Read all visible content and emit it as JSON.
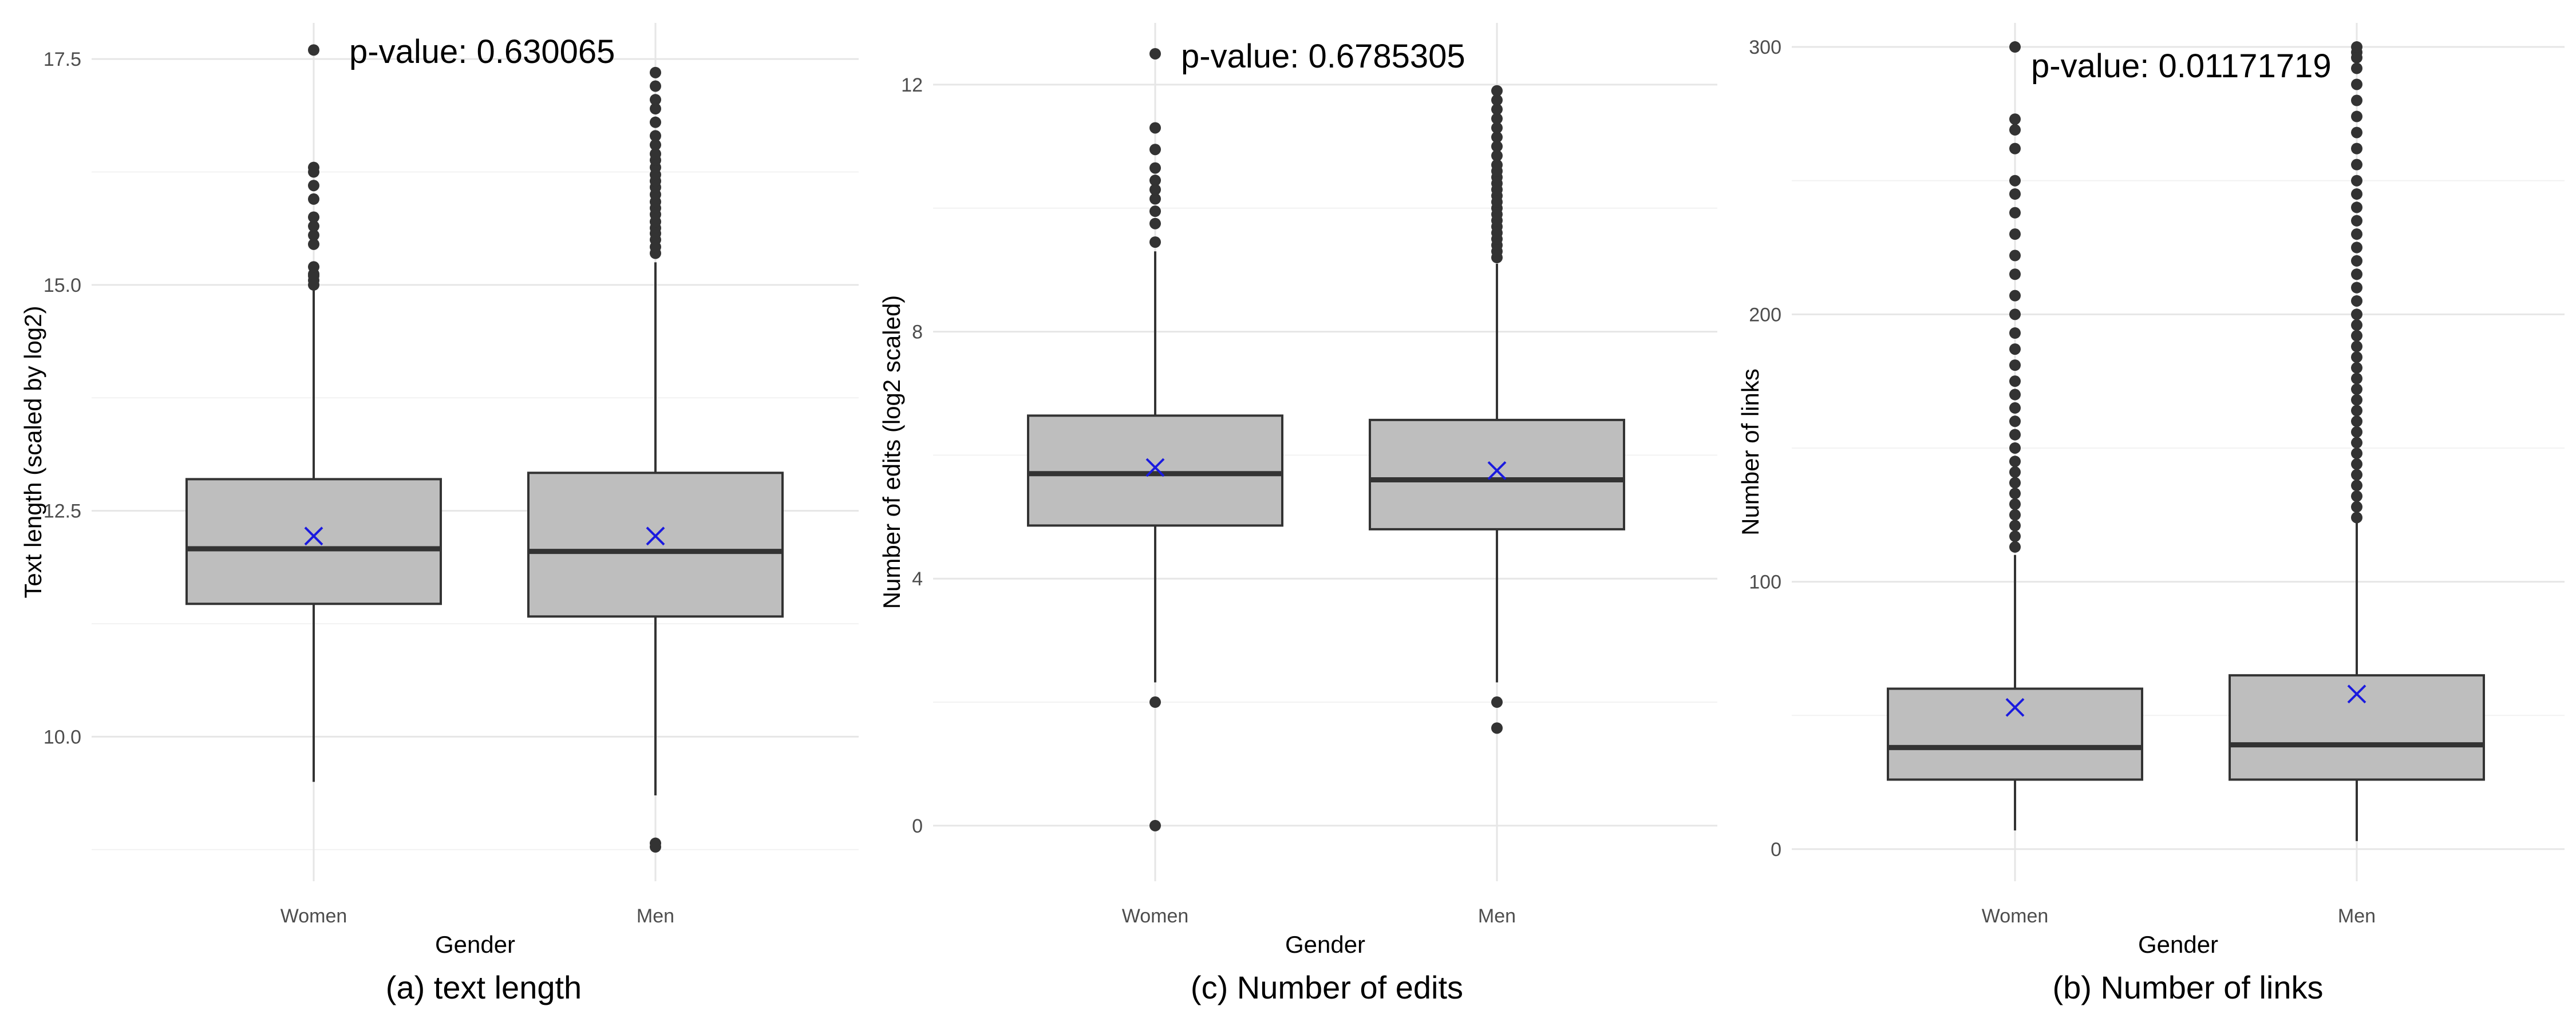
{
  "chart_data": [
    {
      "type": "box",
      "caption": "(a) text length",
      "annotation": "p-value: 0.630065",
      "xlabel": "Gender",
      "ylabel": "Text length (scaled by log2)",
      "ylim": [
        8.4,
        17.9
      ],
      "yticks": [
        10.0,
        12.5,
        15.0,
        17.5
      ],
      "ytick_labels": [
        "10.0",
        "12.5",
        "15.0",
        "17.5"
      ],
      "grid": true,
      "categories": [
        "Women",
        "Men"
      ],
      "boxes": [
        {
          "category": "Women",
          "whisker_low": 9.5,
          "q1": 11.47,
          "median": 12.08,
          "q3": 12.85,
          "whisker_high": 15.0,
          "mean": 12.22,
          "outliers": [
            15.0,
            15.05,
            15.1,
            15.12,
            15.2,
            15.45,
            15.55,
            15.65,
            15.75,
            15.95,
            16.1,
            16.25,
            16.3,
            17.6
          ]
        },
        {
          "category": "Men",
          "whisker_low": 9.35,
          "q1": 11.33,
          "median": 12.05,
          "q3": 12.92,
          "whisker_high": 15.25,
          "mean": 12.22,
          "outliers": [
            8.78,
            8.82,
            15.35,
            15.42,
            15.5,
            15.57,
            15.63,
            15.7,
            15.78,
            15.85,
            15.92,
            16.0,
            16.08,
            16.15,
            16.22,
            16.3,
            16.38,
            16.45,
            16.55,
            16.65,
            16.8,
            16.95,
            17.05,
            17.2,
            17.35
          ]
        }
      ],
      "colors": {
        "box_fill": "#bebebe",
        "box_stroke": "#333333",
        "mean_marker": "#1a1adf",
        "outlier": "#333333"
      }
    },
    {
      "type": "box",
      "caption": "(c) Number of edits",
      "annotation": "p-value: 0.6785305",
      "xlabel": "Gender",
      "ylabel": "Number of edits (log2 scaled)",
      "ylim": [
        -0.9,
        13.0
      ],
      "yticks": [
        0,
        4,
        8,
        12
      ],
      "ytick_labels": [
        "0",
        "4",
        "8",
        "12"
      ],
      "grid": true,
      "categories": [
        "Women",
        "Men"
      ],
      "boxes": [
        {
          "category": "Women",
          "whisker_low": 2.32,
          "q1": 4.86,
          "median": 5.7,
          "q3": 6.64,
          "whisker_high": 9.3,
          "mean": 5.8,
          "outliers": [
            0.0,
            2.0,
            9.45,
            9.75,
            9.95,
            10.15,
            10.3,
            10.45,
            10.65,
            10.95,
            11.3,
            12.5
          ]
        },
        {
          "category": "Men",
          "whisker_low": 2.32,
          "q1": 4.8,
          "median": 5.6,
          "q3": 6.57,
          "whisker_high": 9.1,
          "mean": 5.75,
          "outliers": [
            1.58,
            2.0,
            9.2,
            9.3,
            9.4,
            9.5,
            9.6,
            9.7,
            9.8,
            9.9,
            10.0,
            10.1,
            10.2,
            10.3,
            10.4,
            10.5,
            10.6,
            10.7,
            10.85,
            11.0,
            11.15,
            11.3,
            11.45,
            11.6,
            11.75,
            11.9
          ]
        }
      ],
      "colors": {
        "box_fill": "#bebebe",
        "box_stroke": "#333333",
        "mean_marker": "#1a1adf",
        "outlier": "#333333"
      }
    },
    {
      "type": "box",
      "caption": "(b) Number of links",
      "annotation": "p-value: 0.01171719",
      "xlabel": "Gender",
      "ylabel": "Number of links",
      "ylim": [
        -12,
        309
      ],
      "yticks": [
        0,
        100,
        200,
        300
      ],
      "ytick_labels": [
        "0",
        "100",
        "200",
        "300"
      ],
      "grid": true,
      "categories": [
        "Women",
        "Men"
      ],
      "boxes": [
        {
          "category": "Women",
          "whisker_low": 7,
          "q1": 26,
          "median": 38,
          "q3": 60,
          "whisker_high": 110,
          "mean": 53,
          "outliers": [
            113,
            117,
            121,
            125,
            129,
            133,
            137,
            141,
            145,
            150,
            155,
            160,
            165,
            170,
            175,
            181,
            187,
            193,
            200,
            207,
            215,
            222,
            230,
            238,
            245,
            250,
            262,
            269,
            273,
            300
          ]
        },
        {
          "category": "Men",
          "whisker_low": 3,
          "q1": 26,
          "median": 39,
          "q3": 65,
          "whisker_high": 122,
          "mean": 58,
          "outliers": [
            124,
            128,
            132,
            136,
            140,
            144,
            148,
            152,
            156,
            160,
            164,
            168,
            172,
            176,
            180,
            184,
            188,
            192,
            196,
            200,
            205,
            210,
            215,
            220,
            225,
            230,
            235,
            240,
            245,
            250,
            256,
            262,
            268,
            274,
            280,
            286,
            292,
            296,
            298,
            300
          ]
        }
      ],
      "colors": {
        "box_fill": "#bebebe",
        "box_stroke": "#333333",
        "mean_marker": "#1a1adf",
        "outlier": "#333333"
      }
    }
  ]
}
